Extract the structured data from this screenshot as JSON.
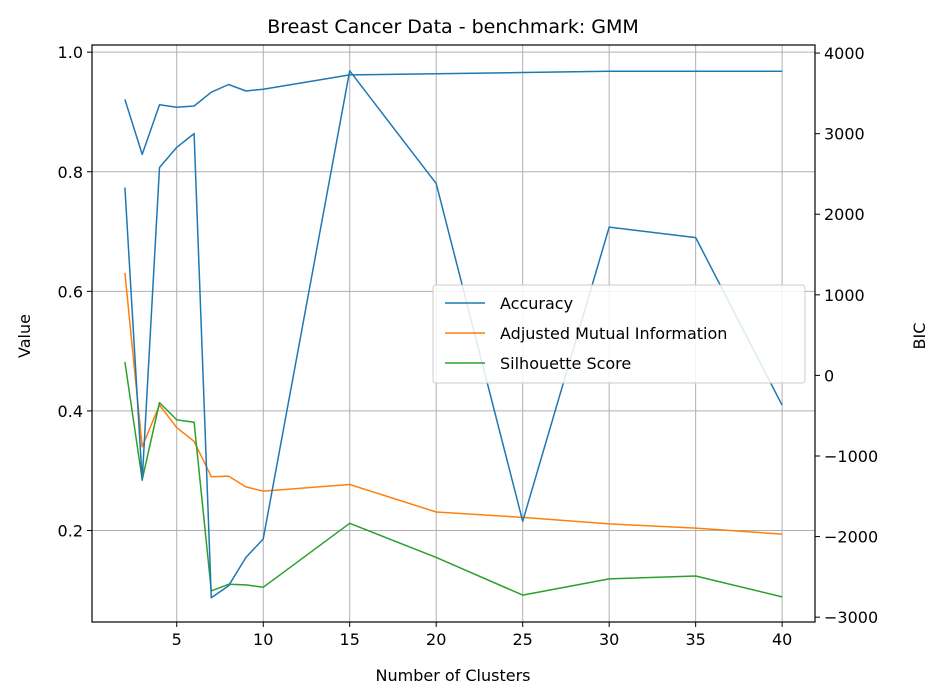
{
  "chart_data": {
    "type": "line",
    "title": "Breast Cancer Data - benchmark: GMM",
    "xlabel": "Number of Clusters",
    "ylabel": "Value",
    "y2label": "BIC",
    "xlim": [
      0.1,
      41.9
    ],
    "ylim": [
      0.047,
      1.012
    ],
    "y2lim": [
      -3060,
      4100
    ],
    "xticks": [
      5,
      10,
      15,
      20,
      25,
      30,
      35,
      40
    ],
    "xtick_labels": [
      "5",
      "10",
      "15",
      "20",
      "25",
      "30",
      "35",
      "40"
    ],
    "yticks": [
      0.2,
      0.4,
      0.6,
      0.8,
      1.0
    ],
    "ytick_labels": [
      "0.2",
      "0.4",
      "0.6",
      "0.8",
      "1.0"
    ],
    "y2ticks": [
      -3000,
      -2000,
      -1000,
      0,
      1000,
      2000,
      3000,
      4000
    ],
    "y2tick_labels": [
      "−3000",
      "−2000",
      "−1000",
      "0",
      "1000",
      "2000",
      "3000",
      "4000"
    ],
    "grid": true,
    "legend_position": "center-right",
    "x": [
      2,
      3,
      4,
      5,
      6,
      7,
      8,
      9,
      10,
      15,
      20,
      25,
      30,
      35,
      40
    ],
    "series": [
      {
        "name": "Accuracy",
        "axis": "left",
        "color": "#1f77b4",
        "values": [
          0.921,
          0.829,
          0.912,
          0.908,
          0.91,
          0.933,
          0.946,
          0.935,
          0.938,
          0.962,
          0.964,
          0.966,
          0.968,
          0.968,
          0.968
        ]
      },
      {
        "name": "Adjusted Mutual Information",
        "axis": "left",
        "color": "#ff7f0e",
        "values": [
          0.631,
          0.34,
          0.41,
          0.372,
          0.349,
          0.29,
          0.291,
          0.273,
          0.266,
          0.277,
          0.231,
          0.222,
          0.211,
          0.204,
          0.194
        ]
      },
      {
        "name": "Silhouette Score",
        "axis": "left",
        "color": "#2ca02c",
        "values": [
          0.482,
          0.285,
          0.414,
          0.385,
          0.381,
          0.099,
          0.11,
          0.109,
          0.105,
          0.212,
          0.155,
          0.092,
          0.119,
          0.124,
          0.089
        ]
      },
      {
        "name": "BIC",
        "axis": "right",
        "color": "#1f77b4",
        "values": [
          2330,
          -1300,
          2580,
          2830,
          3000,
          -2760,
          -2610,
          -2260,
          -2030,
          3780,
          2380,
          -1810,
          1840,
          1710,
          -370
        ]
      }
    ],
    "legend": [
      "Accuracy",
      "Adjusted Mutual Information",
      "Silhouette Score"
    ]
  }
}
